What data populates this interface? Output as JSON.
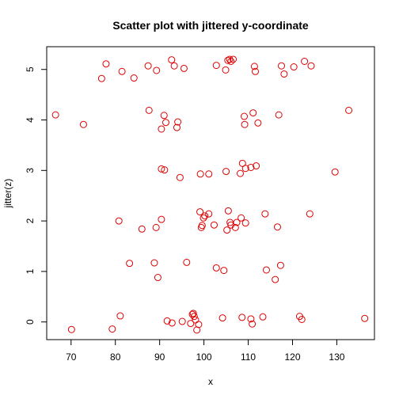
{
  "chart_data": {
    "type": "scatter",
    "title": "Scatter plot with jittered y-coordinate",
    "xlabel": "x",
    "ylabel": "jitter(z)",
    "xlim": [
      64.5,
      138.5
    ],
    "ylim": [
      -0.35,
      5.45
    ],
    "xticks": [
      70,
      80,
      90,
      100,
      110,
      120,
      130
    ],
    "yticks": [
      0,
      1,
      2,
      3,
      4,
      5
    ],
    "grid": false,
    "marker": "open-circle",
    "color": "#dd0000",
    "series": [
      {
        "points": [
          [
            70.1,
            -0.15
          ],
          [
            79.3,
            -0.14
          ],
          [
            81.1,
            0.12
          ],
          [
            91.7,
            0.02
          ],
          [
            92.8,
            -0.02
          ],
          [
            95.1,
            0.01
          ],
          [
            97.0,
            -0.03
          ],
          [
            97.4,
            0.15
          ],
          [
            97.6,
            0.17
          ],
          [
            97.8,
            0.11
          ],
          [
            98.1,
            0.04
          ],
          [
            98.4,
            -0.16
          ],
          [
            98.8,
            -0.05
          ],
          [
            104.2,
            0.08
          ],
          [
            108.6,
            0.09
          ],
          [
            110.6,
            0.06
          ],
          [
            110.9,
            -0.04
          ],
          [
            113.3,
            0.1
          ],
          [
            121.6,
            0.11
          ],
          [
            122.1,
            0.05
          ],
          [
            136.3,
            0.07
          ],
          [
            83.2,
            1.16
          ],
          [
            88.8,
            1.17
          ],
          [
            89.6,
            0.88
          ],
          [
            96.1,
            1.18
          ],
          [
            102.8,
            1.07
          ],
          [
            104.5,
            1.02
          ],
          [
            114.1,
            1.03
          ],
          [
            116.1,
            0.84
          ],
          [
            117.3,
            1.12
          ],
          [
            80.8,
            2.0
          ],
          [
            86.0,
            1.84
          ],
          [
            89.2,
            1.87
          ],
          [
            90.4,
            2.03
          ],
          [
            99.1,
            2.18
          ],
          [
            99.4,
            1.87
          ],
          [
            99.6,
            1.91
          ],
          [
            99.9,
            2.06
          ],
          [
            100.2,
            2.1
          ],
          [
            101.1,
            2.14
          ],
          [
            102.3,
            1.92
          ],
          [
            105.2,
            1.82
          ],
          [
            105.5,
            2.2
          ],
          [
            105.9,
            1.97
          ],
          [
            106.1,
            1.92
          ],
          [
            107.1,
            1.87
          ],
          [
            107.4,
            1.97
          ],
          [
            108.4,
            2.06
          ],
          [
            109.4,
            1.96
          ],
          [
            113.8,
            2.14
          ],
          [
            116.6,
            1.88
          ],
          [
            123.9,
            2.14
          ],
          [
            90.4,
            3.03
          ],
          [
            91.1,
            3.01
          ],
          [
            94.6,
            2.86
          ],
          [
            99.2,
            2.93
          ],
          [
            101.1,
            2.93
          ],
          [
            105.0,
            2.98
          ],
          [
            108.2,
            2.94
          ],
          [
            108.7,
            3.14
          ],
          [
            109.4,
            3.04
          ],
          [
            110.6,
            3.06
          ],
          [
            111.8,
            3.09
          ],
          [
            129.6,
            2.97
          ],
          [
            66.5,
            4.1
          ],
          [
            72.8,
            3.91
          ],
          [
            87.6,
            4.19
          ],
          [
            90.4,
            3.82
          ],
          [
            91.0,
            4.09
          ],
          [
            91.4,
            3.95
          ],
          [
            93.9,
            3.85
          ],
          [
            94.1,
            3.96
          ],
          [
            109.1,
            4.07
          ],
          [
            109.2,
            3.91
          ],
          [
            111.1,
            4.14
          ],
          [
            112.2,
            3.94
          ],
          [
            116.9,
            4.1
          ],
          [
            132.7,
            4.19
          ],
          [
            76.9,
            4.82
          ],
          [
            77.9,
            5.11
          ],
          [
            81.5,
            4.96
          ],
          [
            84.2,
            4.83
          ],
          [
            87.4,
            5.07
          ],
          [
            89.3,
            4.98
          ],
          [
            92.7,
            5.19
          ],
          [
            93.3,
            5.07
          ],
          [
            95.5,
            5.02
          ],
          [
            102.8,
            5.08
          ],
          [
            104.9,
            4.99
          ],
          [
            105.4,
            5.18
          ],
          [
            105.8,
            5.2
          ],
          [
            106.1,
            5.16
          ],
          [
            106.6,
            5.2
          ],
          [
            111.4,
            5.06
          ],
          [
            111.6,
            4.96
          ],
          [
            117.5,
            5.07
          ],
          [
            118.1,
            4.91
          ],
          [
            120.3,
            5.05
          ],
          [
            122.7,
            5.16
          ],
          [
            124.2,
            5.07
          ]
        ]
      }
    ]
  }
}
